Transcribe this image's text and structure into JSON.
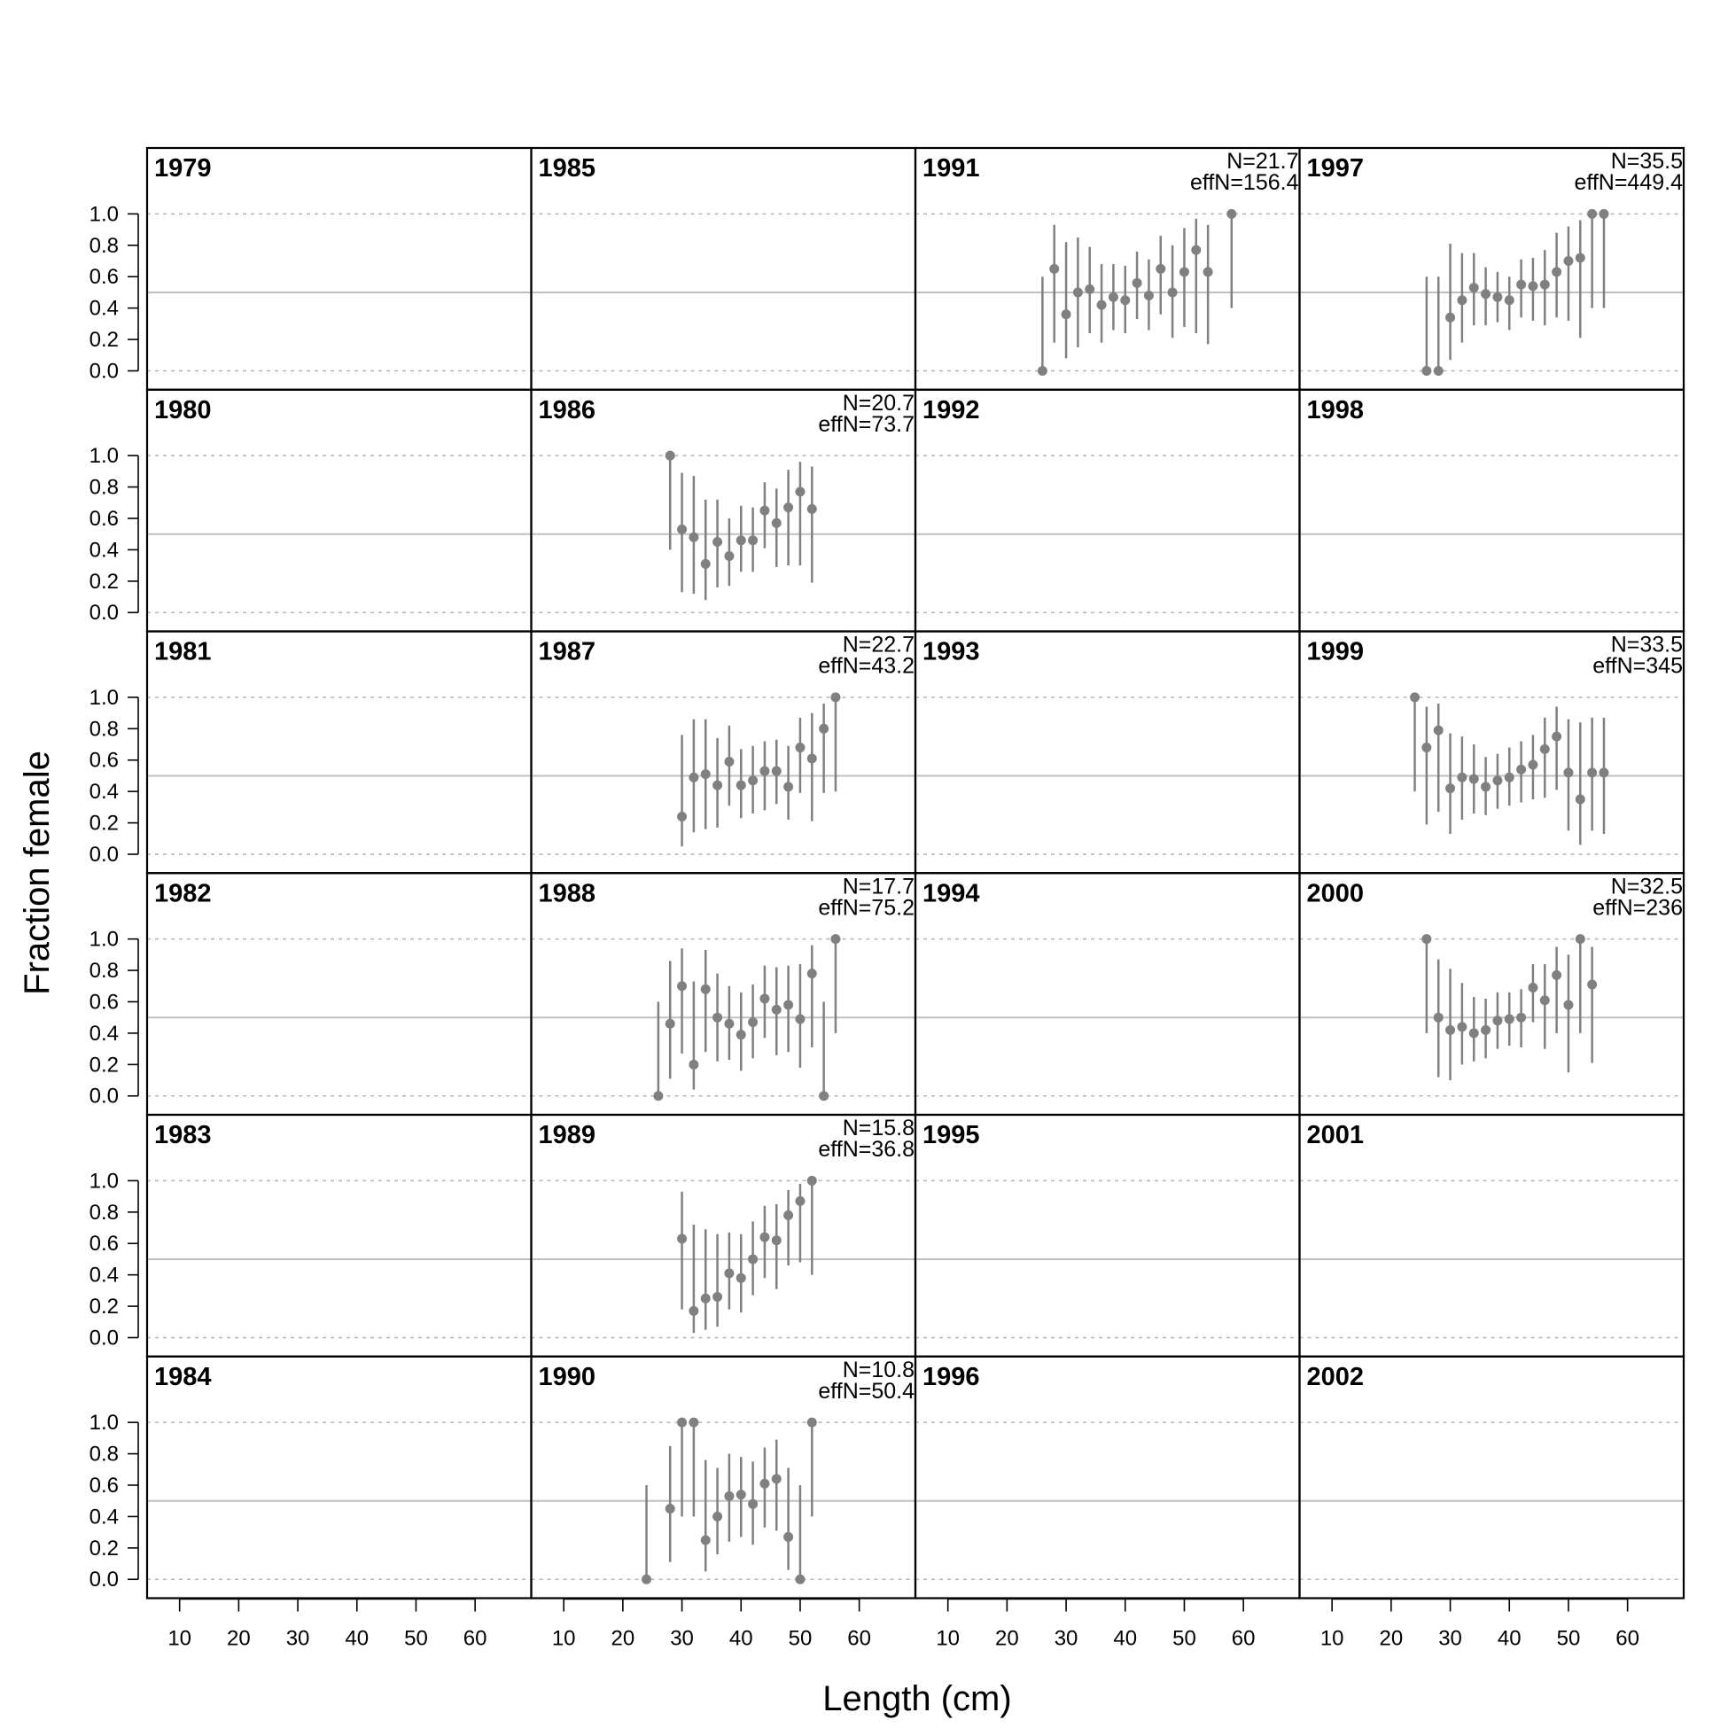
{
  "chart_data": {
    "type": "scatter",
    "xlabel": "Length (cm)",
    "ylabel": "Fraction female",
    "xlim": [
      4.5,
      69.5
    ],
    "ylim": [
      -0.12,
      1.42
    ],
    "x_ticks": [
      "10",
      "20",
      "30",
      "40",
      "50",
      "60"
    ],
    "x_tick_values": [
      10,
      20,
      30,
      40,
      50,
      60
    ],
    "y_ticks": [
      "0.0",
      "0.2",
      "0.4",
      "0.6",
      "0.8",
      "1.0"
    ],
    "y_tick_values": [
      0.0,
      0.2,
      0.4,
      0.6,
      0.8,
      1.0
    ],
    "reference_line": 0.5,
    "grid_dotted": [
      0.0,
      1.0
    ],
    "colors": {
      "points": "#808080",
      "reference": "#c0c0c0",
      "grid": "#b4b4b4",
      "frame": "#000000"
    },
    "layout": {
      "rows": 6,
      "cols": 4,
      "order": "column-major"
    },
    "panels": [
      {
        "year": "1979",
        "n_label": "",
        "effn_label": "",
        "points": []
      },
      {
        "year": "1980",
        "n_label": "",
        "effn_label": "",
        "points": []
      },
      {
        "year": "1981",
        "n_label": "",
        "effn_label": "",
        "points": []
      },
      {
        "year": "1982",
        "n_label": "",
        "effn_label": "",
        "points": []
      },
      {
        "year": "1983",
        "n_label": "",
        "effn_label": "",
        "points": []
      },
      {
        "year": "1984",
        "n_label": "",
        "effn_label": "",
        "points": []
      },
      {
        "year": "1985",
        "n_label": "",
        "effn_label": "",
        "points": []
      },
      {
        "year": "1986",
        "n_label": "N=20.7",
        "effn_label": "effN=73.7",
        "points": [
          [
            28,
            1.0,
            0.4,
            1.0
          ],
          [
            30,
            0.53,
            0.13,
            0.89
          ],
          [
            32,
            0.48,
            0.12,
            0.87
          ],
          [
            34,
            0.31,
            0.08,
            0.72
          ],
          [
            36,
            0.45,
            0.16,
            0.72
          ],
          [
            38,
            0.36,
            0.17,
            0.6
          ],
          [
            40,
            0.46,
            0.26,
            0.68
          ],
          [
            42,
            0.46,
            0.26,
            0.67
          ],
          [
            44,
            0.65,
            0.41,
            0.83
          ],
          [
            46,
            0.57,
            0.29,
            0.79
          ],
          [
            48,
            0.67,
            0.3,
            0.91
          ],
          [
            50,
            0.77,
            0.3,
            0.96
          ],
          [
            52,
            0.66,
            0.19,
            0.93
          ]
        ]
      },
      {
        "year": "1987",
        "n_label": "N=22.7",
        "effn_label": "effN=43.2",
        "points": [
          [
            30,
            0.24,
            0.05,
            0.76
          ],
          [
            32,
            0.49,
            0.14,
            0.86
          ],
          [
            34,
            0.51,
            0.16,
            0.86
          ],
          [
            36,
            0.44,
            0.17,
            0.74
          ],
          [
            38,
            0.59,
            0.31,
            0.82
          ],
          [
            40,
            0.44,
            0.23,
            0.67
          ],
          [
            42,
            0.47,
            0.26,
            0.69
          ],
          [
            44,
            0.53,
            0.28,
            0.72
          ],
          [
            46,
            0.53,
            0.32,
            0.73
          ],
          [
            48,
            0.43,
            0.22,
            0.69
          ],
          [
            50,
            0.68,
            0.39,
            0.87
          ],
          [
            52,
            0.61,
            0.21,
            0.9
          ],
          [
            54,
            0.8,
            0.39,
            0.96
          ],
          [
            56,
            1.0,
            0.4,
            1.0
          ]
        ]
      },
      {
        "year": "1988",
        "n_label": "N=17.7",
        "effn_label": "effN=75.2",
        "points": [
          [
            26,
            0.0,
            0.0,
            0.6
          ],
          [
            28,
            0.46,
            0.11,
            0.86
          ],
          [
            30,
            0.7,
            0.27,
            0.94
          ],
          [
            32,
            0.2,
            0.04,
            0.73
          ],
          [
            34,
            0.68,
            0.28,
            0.93
          ],
          [
            36,
            0.5,
            0.22,
            0.78
          ],
          [
            38,
            0.46,
            0.23,
            0.7
          ],
          [
            40,
            0.39,
            0.16,
            0.66
          ],
          [
            42,
            0.47,
            0.24,
            0.71
          ],
          [
            44,
            0.62,
            0.37,
            0.83
          ],
          [
            46,
            0.55,
            0.26,
            0.82
          ],
          [
            48,
            0.58,
            0.28,
            0.83
          ],
          [
            50,
            0.49,
            0.18,
            0.84
          ],
          [
            52,
            0.78,
            0.31,
            0.96
          ],
          [
            54,
            0.0,
            0.0,
            0.6
          ],
          [
            56,
            1.0,
            0.4,
            1.0
          ]
        ]
      },
      {
        "year": "1989",
        "n_label": "N=15.8",
        "effn_label": "effN=36.8",
        "points": [
          [
            30,
            0.63,
            0.18,
            0.93
          ],
          [
            32,
            0.17,
            0.03,
            0.72
          ],
          [
            34,
            0.25,
            0.05,
            0.69
          ],
          [
            36,
            0.26,
            0.07,
            0.66
          ],
          [
            38,
            0.41,
            0.18,
            0.67
          ],
          [
            40,
            0.38,
            0.16,
            0.66
          ],
          [
            42,
            0.5,
            0.27,
            0.74
          ],
          [
            44,
            0.64,
            0.38,
            0.84
          ],
          [
            46,
            0.62,
            0.31,
            0.85
          ],
          [
            48,
            0.78,
            0.46,
            0.94
          ],
          [
            50,
            0.87,
            0.48,
            0.98
          ],
          [
            52,
            1.0,
            0.4,
            1.0
          ]
        ]
      },
      {
        "year": "1990",
        "n_label": "N=10.8",
        "effn_label": "effN=50.4",
        "points": [
          [
            24,
            0.0,
            0.0,
            0.6
          ],
          [
            28,
            0.45,
            0.11,
            0.85
          ],
          [
            30,
            1.0,
            0.4,
            1.0
          ],
          [
            32,
            1.0,
            0.4,
            1.0
          ],
          [
            34,
            0.25,
            0.05,
            0.76
          ],
          [
            36,
            0.4,
            0.16,
            0.71
          ],
          [
            38,
            0.53,
            0.24,
            0.8
          ],
          [
            40,
            0.54,
            0.27,
            0.78
          ],
          [
            42,
            0.48,
            0.22,
            0.75
          ],
          [
            44,
            0.61,
            0.33,
            0.84
          ],
          [
            46,
            0.64,
            0.31,
            0.89
          ],
          [
            48,
            0.27,
            0.06,
            0.71
          ],
          [
            50,
            0.0,
            0.0,
            0.6
          ],
          [
            52,
            1.0,
            0.4,
            1.0
          ]
        ]
      },
      {
        "year": "1991",
        "n_label": "N=21.7",
        "effn_label": "effN=156.4",
        "points": [
          [
            26,
            0.0,
            0.0,
            0.6
          ],
          [
            28,
            0.65,
            0.18,
            0.93
          ],
          [
            30,
            0.36,
            0.08,
            0.82
          ],
          [
            32,
            0.5,
            0.15,
            0.85
          ],
          [
            34,
            0.52,
            0.24,
            0.79
          ],
          [
            36,
            0.42,
            0.18,
            0.68
          ],
          [
            38,
            0.47,
            0.26,
            0.68
          ],
          [
            40,
            0.45,
            0.24,
            0.67
          ],
          [
            42,
            0.56,
            0.33,
            0.76
          ],
          [
            44,
            0.48,
            0.26,
            0.71
          ],
          [
            46,
            0.65,
            0.36,
            0.86
          ],
          [
            48,
            0.5,
            0.21,
            0.8
          ],
          [
            50,
            0.63,
            0.28,
            0.91
          ],
          [
            52,
            0.77,
            0.24,
            0.97
          ],
          [
            54,
            0.63,
            0.17,
            0.93
          ],
          [
            58,
            1.0,
            0.4,
            1.0
          ]
        ]
      },
      {
        "year": "1992",
        "n_label": "",
        "effn_label": "",
        "points": []
      },
      {
        "year": "1993",
        "n_label": "",
        "effn_label": "",
        "points": []
      },
      {
        "year": "1994",
        "n_label": "",
        "effn_label": "",
        "points": []
      },
      {
        "year": "1995",
        "n_label": "",
        "effn_label": "",
        "points": []
      },
      {
        "year": "1996",
        "n_label": "",
        "effn_label": "",
        "points": []
      },
      {
        "year": "1997",
        "n_label": "N=35.5",
        "effn_label": "effN=449.4",
        "points": [
          [
            26,
            0.0,
            0.0,
            0.6
          ],
          [
            28,
            0.0,
            0.0,
            0.6
          ],
          [
            30,
            0.34,
            0.07,
            0.81
          ],
          [
            32,
            0.45,
            0.18,
            0.75
          ],
          [
            34,
            0.53,
            0.29,
            0.75
          ],
          [
            36,
            0.49,
            0.29,
            0.66
          ],
          [
            38,
            0.47,
            0.31,
            0.63
          ],
          [
            40,
            0.45,
            0.26,
            0.6
          ],
          [
            42,
            0.55,
            0.34,
            0.71
          ],
          [
            44,
            0.54,
            0.32,
            0.72
          ],
          [
            46,
            0.55,
            0.29,
            0.77
          ],
          [
            48,
            0.63,
            0.34,
            0.88
          ],
          [
            50,
            0.7,
            0.32,
            0.92
          ],
          [
            52,
            0.72,
            0.21,
            0.96
          ],
          [
            54,
            1.0,
            0.4,
            1.0
          ],
          [
            56,
            1.0,
            0.4,
            1.0
          ]
        ]
      },
      {
        "year": "1998",
        "n_label": "",
        "effn_label": "",
        "points": []
      },
      {
        "year": "1999",
        "n_label": "N=33.5",
        "effn_label": "effN=345",
        "points": [
          [
            24,
            1.0,
            0.4,
            1.0
          ],
          [
            26,
            0.68,
            0.19,
            0.94
          ],
          [
            28,
            0.79,
            0.27,
            0.96
          ],
          [
            30,
            0.42,
            0.13,
            0.77
          ],
          [
            32,
            0.49,
            0.22,
            0.75
          ],
          [
            34,
            0.48,
            0.26,
            0.7
          ],
          [
            36,
            0.43,
            0.25,
            0.62
          ],
          [
            38,
            0.47,
            0.29,
            0.64
          ],
          [
            40,
            0.49,
            0.31,
            0.68
          ],
          [
            42,
            0.54,
            0.33,
            0.72
          ],
          [
            44,
            0.57,
            0.35,
            0.76
          ],
          [
            46,
            0.67,
            0.36,
            0.87
          ],
          [
            48,
            0.75,
            0.41,
            0.94
          ],
          [
            50,
            0.52,
            0.15,
            0.86
          ],
          [
            52,
            0.35,
            0.06,
            0.84
          ],
          [
            54,
            0.52,
            0.15,
            0.87
          ],
          [
            56,
            0.52,
            0.13,
            0.87
          ]
        ]
      },
      {
        "year": "2000",
        "n_label": "N=32.5",
        "effn_label": "effN=236",
        "points": [
          [
            26,
            1.0,
            0.4,
            1.0
          ],
          [
            28,
            0.5,
            0.12,
            0.87
          ],
          [
            30,
            0.42,
            0.1,
            0.81
          ],
          [
            32,
            0.44,
            0.2,
            0.72
          ],
          [
            34,
            0.4,
            0.22,
            0.63
          ],
          [
            36,
            0.42,
            0.24,
            0.62
          ],
          [
            38,
            0.48,
            0.3,
            0.66
          ],
          [
            40,
            0.49,
            0.32,
            0.66
          ],
          [
            42,
            0.5,
            0.31,
            0.68
          ],
          [
            44,
            0.69,
            0.47,
            0.84
          ],
          [
            46,
            0.61,
            0.3,
            0.84
          ],
          [
            48,
            0.77,
            0.4,
            0.95
          ],
          [
            50,
            0.58,
            0.15,
            0.9
          ],
          [
            52,
            1.0,
            0.4,
            1.0
          ],
          [
            54,
            0.71,
            0.21,
            0.95
          ]
        ]
      },
      {
        "year": "2001",
        "n_label": "",
        "effn_label": "",
        "points": []
      },
      {
        "year": "2002",
        "n_label": "",
        "effn_label": "",
        "points": []
      }
    ]
  }
}
